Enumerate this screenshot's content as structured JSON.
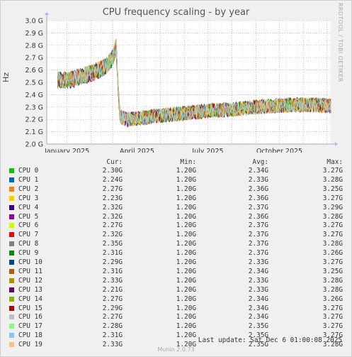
{
  "title": "CPU frequency scaling - by year",
  "side_label": "RRDTOOL / TOBI OETIKER",
  "legend_header": {
    "cur": "Cur:",
    "min": "Min:",
    "avg": "Avg:",
    "max": "Max:"
  },
  "legend": [
    {
      "name": "CPU 0",
      "color": "#00cc00",
      "cur": "2.30G",
      "min": "1.20G",
      "avg": "2.34G",
      "max": "3.27G"
    },
    {
      "name": "CPU 1",
      "color": "#0066b3",
      "cur": "2.24G",
      "min": "1.20G",
      "avg": "2.33G",
      "max": "3.28G"
    },
    {
      "name": "CPU 2",
      "color": "#ff8000",
      "cur": "2.27G",
      "min": "1.20G",
      "avg": "2.36G",
      "max": "3.25G"
    },
    {
      "name": "CPU 3",
      "color": "#ffcc00",
      "cur": "2.23G",
      "min": "1.20G",
      "avg": "2.36G",
      "max": "3.27G"
    },
    {
      "name": "CPU 4",
      "color": "#330099",
      "cur": "2.32G",
      "min": "1.20G",
      "avg": "2.37G",
      "max": "3.29G"
    },
    {
      "name": "CPU 5",
      "color": "#990099",
      "cur": "2.32G",
      "min": "1.20G",
      "avg": "2.36G",
      "max": "3.28G"
    },
    {
      "name": "CPU 6",
      "color": "#ccff00",
      "cur": "2.27G",
      "min": "1.20G",
      "avg": "2.37G",
      "max": "3.27G"
    },
    {
      "name": "CPU 7",
      "color": "#ff0000",
      "cur": "2.32G",
      "min": "1.20G",
      "avg": "2.37G",
      "max": "3.27G"
    },
    {
      "name": "CPU 8",
      "color": "#808080",
      "cur": "2.35G",
      "min": "1.20G",
      "avg": "2.37G",
      "max": "3.28G"
    },
    {
      "name": "CPU 9",
      "color": "#008f00",
      "cur": "2.31G",
      "min": "1.20G",
      "avg": "2.37G",
      "max": "3.26G"
    },
    {
      "name": "CPU 10",
      "color": "#00487d",
      "cur": "2.29G",
      "min": "1.20G",
      "avg": "2.33G",
      "max": "3.27G"
    },
    {
      "name": "CPU 11",
      "color": "#b35a00",
      "cur": "2.31G",
      "min": "1.20G",
      "avg": "2.34G",
      "max": "3.25G"
    },
    {
      "name": "CPU 12",
      "color": "#b38f00",
      "cur": "2.33G",
      "min": "1.20G",
      "avg": "2.33G",
      "max": "3.28G"
    },
    {
      "name": "CPU 13",
      "color": "#6b006b",
      "cur": "2.21G",
      "min": "1.20G",
      "avg": "2.33G",
      "max": "3.28G"
    },
    {
      "name": "CPU 14",
      "color": "#8fb300",
      "cur": "2.27G",
      "min": "1.20G",
      "avg": "2.34G",
      "max": "3.26G"
    },
    {
      "name": "CPU 15",
      "color": "#b30000",
      "cur": "2.29G",
      "min": "1.20G",
      "avg": "2.34G",
      "max": "3.27G"
    },
    {
      "name": "CPU 16",
      "color": "#bebebe",
      "cur": "2.27G",
      "min": "1.20G",
      "avg": "2.34G",
      "max": "3.27G"
    },
    {
      "name": "CPU 17",
      "color": "#80ff80",
      "cur": "2.28G",
      "min": "1.20G",
      "avg": "2.35G",
      "max": "3.27G"
    },
    {
      "name": "CPU 18",
      "color": "#80c9ff",
      "cur": "2.31G",
      "min": "1.20G",
      "avg": "2.35G",
      "max": "3.27G"
    },
    {
      "name": "CPU 19",
      "color": "#ffc080",
      "cur": "2.33G",
      "min": "1.20G",
      "avg": "2.35G",
      "max": "3.28G"
    }
  ],
  "last_update": "Last update: Sat Dec  6 01:00:08 2025",
  "version": "Munin 2.0.73",
  "chart_data": {
    "type": "line",
    "title": "CPU frequency scaling - by year",
    "ylabel": "Hz",
    "xlabel": "",
    "ylim": [
      2.0,
      3.0
    ],
    "y_unit": "G",
    "y_ticks": [
      "2.0 G",
      "2.1 G",
      "2.2 G",
      "2.3 G",
      "2.4 G",
      "2.5 G",
      "2.6 G",
      "2.7 G",
      "2.8 G",
      "2.9 G",
      "3.0 G"
    ],
    "x_ticks": [
      "January 2025",
      "April 2025",
      "July 2025",
      "October 2025"
    ],
    "x_range": [
      "2024-12-06",
      "2025-12-06"
    ],
    "grid": true,
    "colors": {
      "grid_major": "#e09090",
      "grid_minor": "#e8c8c8",
      "background": "#ffffff"
    },
    "trend": {
      "x": [
        "2024-12-06",
        "2024-12-20",
        "2025-01-05",
        "2025-01-20",
        "2025-02-05",
        "2025-02-20",
        "2025-03-01",
        "2025-03-05",
        "2025-03-10",
        "2025-03-20",
        "2025-04-05",
        "2025-05-01",
        "2025-06-01",
        "2025-07-01",
        "2025-08-01",
        "2025-09-01",
        "2025-10-01",
        "2025-11-01",
        "2025-12-06"
      ],
      "y": [
        2.58,
        2.52,
        2.52,
        2.55,
        2.58,
        2.63,
        2.7,
        2.8,
        2.22,
        2.2,
        2.21,
        2.23,
        2.25,
        2.27,
        2.28,
        2.3,
        2.31,
        2.32,
        2.31
      ]
    }
  }
}
